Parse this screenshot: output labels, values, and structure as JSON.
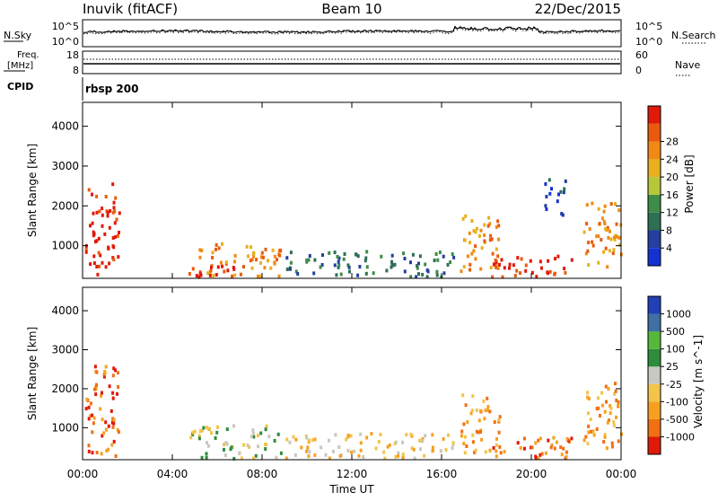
{
  "header": {
    "site": "Inuvik (fitACF)",
    "beam": "Beam 10",
    "date": "22/Dec/2015"
  },
  "top_panels": {
    "nsky_label": "N.Sky",
    "nsky_ticks": [
      "10^5",
      "10^0"
    ],
    "nsearch_label": "N.Search",
    "nsearch_ticks": [
      "10^5",
      "10^0"
    ],
    "freq_label": "Freq.",
    "freq_unit": "[MHz]",
    "freq_ticks": [
      "18",
      "8"
    ],
    "nave_label": "Nave",
    "nave_ticks": [
      "60",
      "0"
    ],
    "cpid_label": "CPID",
    "cpid_value": "rbsp 200"
  },
  "chart_data": [
    {
      "type": "heatmap",
      "name": "power",
      "ylabel": "Slant Range [km]",
      "y_ticks": [
        1000,
        2000,
        3000,
        4000
      ],
      "ylim": [
        180,
        4600
      ],
      "xlim": [
        0,
        24
      ],
      "colorbar": {
        "label": "Power [dB]",
        "ticks": [
          "4",
          "8",
          "12",
          "16",
          "20",
          "24",
          "28"
        ],
        "colors": [
          "#1432d2",
          "#233fa0",
          "#2e6f55",
          "#3e8c47",
          "#b6c83a",
          "#e8b020",
          "#f08a14",
          "#ea5a0e",
          "#e01a0a"
        ]
      },
      "regions": [
        {
          "t": [
            0.1,
            1.6
          ],
          "r": [
            300,
            2600
          ],
          "level": 8
        },
        {
          "t": [
            4.7,
            8.8
          ],
          "r": [
            250,
            1100
          ],
          "level": 6
        },
        {
          "t": [
            5.0,
            7.4
          ],
          "r": [
            250,
            550
          ],
          "level": 9
        },
        {
          "t": [
            9.0,
            16.5
          ],
          "r": [
            250,
            900
          ],
          "level": 2
        },
        {
          "t": [
            16.8,
            18.6
          ],
          "r": [
            400,
            1900
          ],
          "level": 6
        },
        {
          "t": [
            18.2,
            22.0
          ],
          "r": [
            250,
            800
          ],
          "level": 8
        },
        {
          "t": [
            20.5,
            21.5
          ],
          "r": [
            1800,
            2700
          ],
          "level": 1
        },
        {
          "t": [
            22.3,
            24.0
          ],
          "r": [
            500,
            2200
          ],
          "level": 6
        }
      ]
    },
    {
      "type": "heatmap",
      "name": "velocity",
      "ylabel": "Slant Range [km]",
      "y_ticks": [
        1000,
        2000,
        3000,
        4000
      ],
      "ylim": [
        180,
        4600
      ],
      "xlim": [
        0,
        24
      ],
      "colorbar": {
        "label": "Velocity [m s^-1]",
        "ticks": [
          "-1000",
          "-500",
          "-100",
          "-25",
          "25",
          "100",
          "500",
          "1000"
        ],
        "colors": [
          "#e01a0a",
          "#f07014",
          "#f7a020",
          "#f2c44a",
          "#c8c8c0",
          "#2e8c3c",
          "#55b83a",
          "#3f6fa3",
          "#2140b5"
        ]
      },
      "regions": [
        {
          "t": [
            0.1,
            1.6
          ],
          "r": [
            300,
            2700
          ],
          "level": 1
        },
        {
          "t": [
            4.7,
            8.8
          ],
          "r": [
            250,
            1100
          ],
          "level": 4
        },
        {
          "t": [
            9.0,
            16.5
          ],
          "r": [
            250,
            900
          ],
          "level": 3
        },
        {
          "t": [
            16.8,
            18.6
          ],
          "r": [
            400,
            1900
          ],
          "level": 2
        },
        {
          "t": [
            18.2,
            22.0
          ],
          "r": [
            250,
            800
          ],
          "level": 1
        },
        {
          "t": [
            22.3,
            24.0
          ],
          "r": [
            500,
            2200
          ],
          "level": 2
        }
      ]
    }
  ],
  "x_axis": {
    "ticks": [
      "00:00",
      "04:00",
      "08:00",
      "12:00",
      "16:00",
      "20:00",
      "00:00"
    ],
    "label": "Time UT"
  }
}
